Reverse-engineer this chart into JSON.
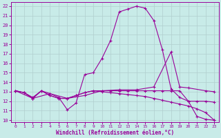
{
  "xlabel": "Windchill (Refroidissement éolien,°C)",
  "background_color": "#c8ebe8",
  "grid_color": "#b0cece",
  "line_color": "#990099",
  "xlim": [
    -0.5,
    23.5
  ],
  "ylim": [
    9.8,
    22.4
  ],
  "xticks": [
    0,
    1,
    2,
    3,
    4,
    5,
    6,
    7,
    8,
    9,
    10,
    11,
    12,
    13,
    14,
    15,
    16,
    17,
    18,
    19,
    20,
    21,
    22,
    23
  ],
  "yticks": [
    10,
    11,
    12,
    13,
    14,
    15,
    16,
    17,
    18,
    19,
    20,
    21,
    22
  ],
  "lines": [
    {
      "x": [
        0,
        1,
        2,
        3,
        4,
        5,
        6,
        7,
        8,
        9,
        10,
        11,
        12,
        13,
        14,
        15,
        16,
        17,
        18,
        19,
        20,
        21,
        22,
        23
      ],
      "y": [
        13.1,
        12.9,
        12.4,
        13.1,
        12.8,
        12.4,
        11.1,
        11.8,
        14.8,
        15.0,
        16.5,
        18.4,
        21.4,
        21.7,
        22.0,
        21.8,
        20.5,
        17.4,
        13.3,
        12.4,
        12.0,
        10.4,
        10.1,
        10.0
      ]
    },
    {
      "x": [
        0,
        2,
        4,
        6,
        8,
        10,
        12,
        14,
        16,
        18,
        19,
        20,
        22,
        23
      ],
      "y": [
        13.1,
        12.3,
        12.8,
        12.3,
        12.6,
        13.1,
        13.2,
        13.2,
        13.5,
        17.2,
        13.5,
        13.4,
        13.1,
        13.0
      ]
    },
    {
      "x": [
        0,
        1,
        2,
        3,
        4,
        5,
        6,
        7,
        8,
        9,
        10,
        11,
        12,
        13,
        14,
        15,
        16,
        17,
        18,
        19,
        20,
        21,
        22,
        23
      ],
      "y": [
        13.1,
        12.9,
        12.3,
        13.1,
        12.6,
        12.3,
        12.3,
        12.6,
        12.9,
        13.1,
        13.1,
        13.1,
        13.1,
        13.1,
        13.1,
        13.1,
        13.1,
        13.1,
        13.1,
        13.1,
        12.0,
        12.0,
        12.0,
        11.9
      ]
    },
    {
      "x": [
        0,
        1,
        2,
        3,
        4,
        5,
        6,
        7,
        8,
        9,
        10,
        11,
        12,
        13,
        14,
        15,
        16,
        17,
        18,
        19,
        20,
        21,
        22,
        23
      ],
      "y": [
        13.1,
        12.9,
        12.3,
        13.1,
        12.6,
        12.3,
        12.3,
        12.6,
        12.9,
        13.1,
        13.0,
        12.9,
        12.8,
        12.7,
        12.6,
        12.5,
        12.3,
        12.1,
        11.9,
        11.7,
        11.5,
        11.2,
        10.8,
        10.0
      ]
    }
  ]
}
